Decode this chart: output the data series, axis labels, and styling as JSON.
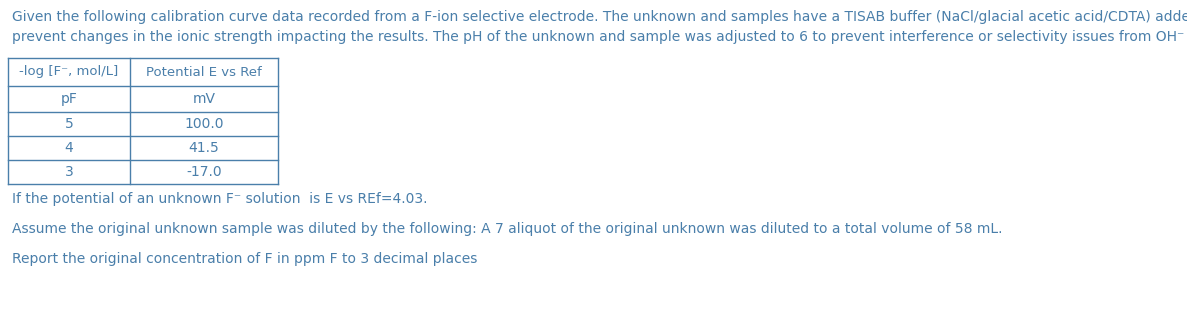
{
  "intro_text_line1": "Given the following calibration curve data recorded from a F-ion selective electrode. The unknown and samples have a TISAB buffer (NaCl/glacial acetic acid/CDTA) added to",
  "intro_text_line2": "prevent changes in the ionic strength impacting the results. The pH of the unknown and sample was adjusted to 6 to prevent interference or selectivity issues from OH⁻",
  "table_header_col1": "-log [F⁻, mol/L]",
  "table_header_col2": "Potential E vs Ref",
  "table_subheader_col1": "pF",
  "table_subheader_col2": "mV",
  "table_data": [
    [
      "5",
      "100.0"
    ],
    [
      "4",
      "41.5"
    ],
    [
      "3",
      "-17.0"
    ]
  ],
  "question1": "If the potential of an unknown F⁻ solution  is E vs REf=4.03.",
  "question2": "Assume the original unknown sample was diluted by the following: A 7 aliquot of the original unknown was diluted to a total volume of 58 mL.",
  "question3": "Report the original concentration of F in ppm F to 3 decimal places",
  "text_color": "#4a7faa",
  "table_border_color": "#4a7faa",
  "bg_color": "#ffffff",
  "font_size": 10.0,
  "fig_width": 11.87,
  "fig_height": 3.25,
  "dpi": 100
}
